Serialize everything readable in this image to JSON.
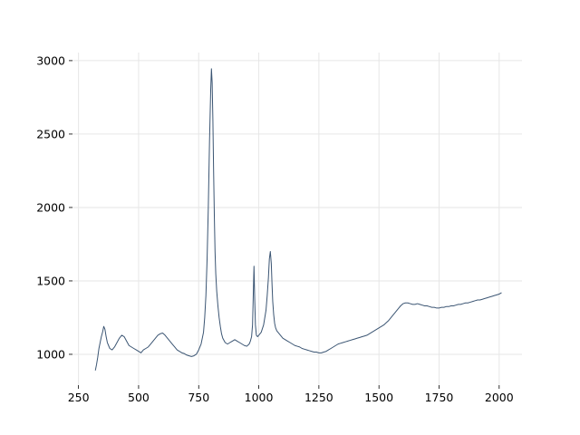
{
  "chart_data": {
    "type": "line",
    "title": "",
    "xlabel": "",
    "ylabel": "",
    "xlim": [
      225,
      2095
    ],
    "ylim": [
      790,
      3055
    ],
    "xticks": [
      250,
      500,
      750,
      1000,
      1250,
      1500,
      1750,
      2000
    ],
    "yticks": [
      1000,
      1500,
      2000,
      2500,
      3000
    ],
    "grid": true,
    "legend": "none",
    "colors": {
      "line": "#3b5573",
      "grid": "#e6e6e6",
      "text": "#000000"
    },
    "series": [
      {
        "x": [
          320,
          325,
          330,
          335,
          340,
          345,
          350,
          355,
          360,
          365,
          370,
          375,
          380,
          390,
          400,
          410,
          420,
          430,
          440,
          450,
          460,
          470,
          480,
          490,
          500,
          510,
          520,
          530,
          540,
          550,
          560,
          570,
          580,
          590,
          600,
          610,
          620,
          630,
          640,
          650,
          660,
          670,
          680,
          690,
          700,
          710,
          720,
          730,
          740,
          750,
          760,
          770,
          775,
          780,
          785,
          790,
          795,
          800,
          803,
          806,
          809,
          812,
          815,
          818,
          821,
          825,
          830,
          835,
          840,
          845,
          850,
          860,
          870,
          880,
          890,
          900,
          910,
          920,
          930,
          940,
          950,
          960,
          965,
          970,
          974,
          977,
          980,
          983,
          986,
          990,
          995,
          1000,
          1010,
          1020,
          1030,
          1035,
          1040,
          1044,
          1048,
          1052,
          1055,
          1058,
          1062,
          1066,
          1070,
          1075,
          1080,
          1090,
          1100,
          1110,
          1120,
          1130,
          1140,
          1150,
          1160,
          1170,
          1180,
          1190,
          1200,
          1210,
          1220,
          1230,
          1240,
          1250,
          1260,
          1270,
          1280,
          1290,
          1300,
          1310,
          1320,
          1330,
          1340,
          1350,
          1360,
          1370,
          1380,
          1390,
          1400,
          1410,
          1420,
          1430,
          1440,
          1450,
          1460,
          1470,
          1480,
          1490,
          1500,
          1510,
          1520,
          1530,
          1540,
          1550,
          1560,
          1570,
          1580,
          1590,
          1600,
          1610,
          1620,
          1630,
          1640,
          1650,
          1660,
          1670,
          1680,
          1690,
          1700,
          1710,
          1720,
          1730,
          1740,
          1750,
          1760,
          1770,
          1780,
          1790,
          1800,
          1810,
          1820,
          1830,
          1840,
          1850,
          1860,
          1870,
          1880,
          1890,
          1900,
          1910,
          1920,
          1930,
          1940,
          1950,
          1960,
          1970,
          1980,
          1990,
          2000,
          2010
        ],
        "y": [
          890,
          930,
          980,
          1040,
          1080,
          1120,
          1150,
          1190,
          1170,
          1120,
          1080,
          1060,
          1040,
          1030,
          1050,
          1080,
          1110,
          1130,
          1120,
          1090,
          1060,
          1050,
          1040,
          1030,
          1020,
          1010,
          1030,
          1040,
          1050,
          1070,
          1090,
          1110,
          1130,
          1140,
          1145,
          1130,
          1110,
          1090,
          1070,
          1050,
          1030,
          1020,
          1010,
          1005,
          995,
          990,
          985,
          990,
          1000,
          1030,
          1070,
          1150,
          1250,
          1400,
          1650,
          2000,
          2450,
          2800,
          2945,
          2850,
          2600,
          2250,
          1950,
          1700,
          1550,
          1430,
          1330,
          1250,
          1190,
          1140,
          1110,
          1080,
          1070,
          1080,
          1090,
          1100,
          1090,
          1080,
          1070,
          1060,
          1055,
          1070,
          1090,
          1120,
          1200,
          1400,
          1600,
          1380,
          1200,
          1130,
          1120,
          1130,
          1150,
          1200,
          1300,
          1400,
          1520,
          1650,
          1700,
          1620,
          1480,
          1360,
          1270,
          1210,
          1180,
          1160,
          1150,
          1130,
          1110,
          1100,
          1090,
          1080,
          1070,
          1060,
          1055,
          1050,
          1040,
          1035,
          1030,
          1025,
          1020,
          1015,
          1015,
          1010,
          1010,
          1015,
          1020,
          1030,
          1040,
          1050,
          1060,
          1070,
          1075,
          1080,
          1085,
          1090,
          1095,
          1100,
          1105,
          1110,
          1115,
          1120,
          1125,
          1130,
          1140,
          1150,
          1160,
          1170,
          1180,
          1190,
          1200,
          1215,
          1230,
          1250,
          1270,
          1290,
          1310,
          1330,
          1345,
          1350,
          1350,
          1345,
          1340,
          1340,
          1345,
          1340,
          1335,
          1330,
          1330,
          1325,
          1320,
          1320,
          1315,
          1315,
          1320,
          1320,
          1325,
          1325,
          1330,
          1330,
          1335,
          1340,
          1340,
          1345,
          1350,
          1350,
          1355,
          1360,
          1365,
          1370,
          1370,
          1375,
          1380,
          1385,
          1390,
          1395,
          1400,
          1405,
          1410,
          1420
        ]
      }
    ]
  }
}
